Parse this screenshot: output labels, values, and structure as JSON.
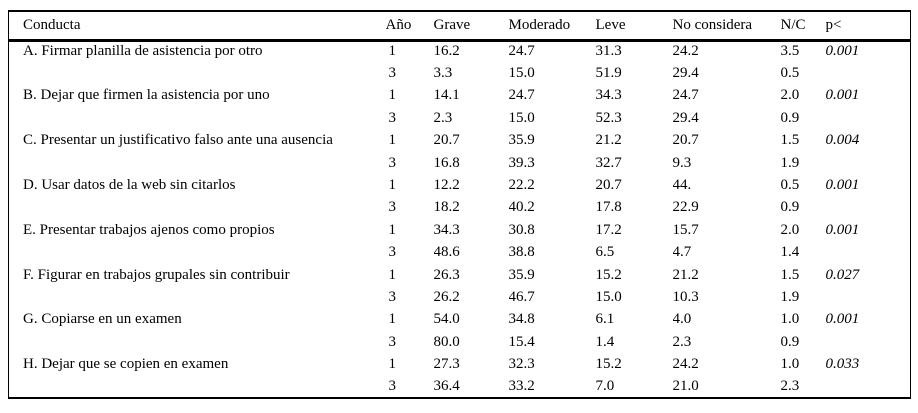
{
  "table": {
    "columns": [
      "Conducta",
      "Año",
      "Grave",
      "Moderado",
      "Leve",
      "No considera",
      "N/C",
      "p<"
    ],
    "rows": [
      {
        "conducta": "A. Firmar planilla de asistencia por otro",
        "years": [
          {
            "ano": "1",
            "grave": "16.2",
            "moderado": "24.7",
            "leve": "31.3",
            "no_considera": "24.2",
            "nc": "3.5",
            "p": "0.001"
          },
          {
            "ano": "3",
            "grave": "3.3",
            "moderado": "15.0",
            "leve": "51.9",
            "no_considera": "29.4",
            "nc": "0.5",
            "p": ""
          }
        ]
      },
      {
        "conducta": "B. Dejar que firmen la asistencia por uno",
        "years": [
          {
            "ano": "1",
            "grave": "14.1",
            "moderado": "24.7",
            "leve": "34.3",
            "no_considera": "24.7",
            "nc": "2.0",
            "p": "0.001"
          },
          {
            "ano": "3",
            "grave": "2.3",
            "moderado": "15.0",
            "leve": "52.3",
            "no_considera": "29.4",
            "nc": "0.9",
            "p": ""
          }
        ]
      },
      {
        "conducta": "C. Presentar un justificativo falso ante una ausencia",
        "years": [
          {
            "ano": "1",
            "grave": "20.7",
            "moderado": "35.9",
            "leve": "21.2",
            "no_considera": "20.7",
            "nc": "1.5",
            "p": "0.004"
          },
          {
            "ano": "3",
            "grave": "16.8",
            "moderado": "39.3",
            "leve": "32.7",
            "no_considera": "9.3",
            "nc": "1.9",
            "p": ""
          }
        ]
      },
      {
        "conducta": "D. Usar datos de la web sin citarlos",
        "years": [
          {
            "ano": "1",
            "grave": "12.2",
            "moderado": "22.2",
            "leve": "20.7",
            "no_considera": "44.",
            "nc": "0.5",
            "p": "0.001"
          },
          {
            "ano": "3",
            "grave": "18.2",
            "moderado": "40.2",
            "leve": "17.8",
            "no_considera": "22.9",
            "nc": "0.9",
            "p": ""
          }
        ]
      },
      {
        "conducta": "E. Presentar trabajos ajenos como propios",
        "years": [
          {
            "ano": "1",
            "grave": "34.3",
            "moderado": "30.8",
            "leve": "17.2",
            "no_considera": "15.7",
            "nc": "2.0",
            "p": "0.001"
          },
          {
            "ano": "3",
            "grave": "48.6",
            "moderado": "38.8",
            "leve": "6.5",
            "no_considera": "4.7",
            "nc": "1.4",
            "p": ""
          }
        ]
      },
      {
        "conducta": "F. Figurar en trabajos grupales sin contribuir",
        "years": [
          {
            "ano": "1",
            "grave": "26.3",
            "moderado": "35.9",
            "leve": "15.2",
            "no_considera": "21.2",
            "nc": "1.5",
            "p": "0.027"
          },
          {
            "ano": "3",
            "grave": "26.2",
            "moderado": "46.7",
            "leve": "15.0",
            "no_considera": "10.3",
            "nc": "1.9",
            "p": ""
          }
        ]
      },
      {
        "conducta": "G. Copiarse en un examen",
        "years": [
          {
            "ano": "1",
            "grave": "54.0",
            "moderado": "34.8",
            "leve": "6.1",
            "no_considera": "4.0",
            "nc": "1.0",
            "p": "0.001"
          },
          {
            "ano": "3",
            "grave": "80.0",
            "moderado": "15.4",
            "leve": "1.4",
            "no_considera": "2.3",
            "nc": "0.9",
            "p": ""
          }
        ]
      },
      {
        "conducta": "H. Dejar que se copien en examen",
        "years": [
          {
            "ano": "1",
            "grave": "27.3",
            "moderado": "32.3",
            "leve": "15.2",
            "no_considera": "24.2",
            "nc": "1.0",
            "p": "0.033"
          },
          {
            "ano": "3",
            "grave": "36.4",
            "moderado": "33.2",
            "leve": "7.0",
            "no_considera": "21.0",
            "nc": "2.3",
            "p": ""
          }
        ]
      }
    ]
  }
}
